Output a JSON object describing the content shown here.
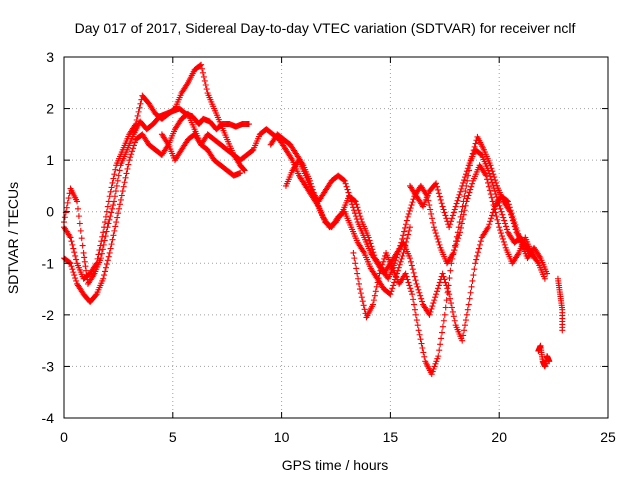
{
  "chart_data": {
    "type": "scatter",
    "title": "Day 017 of 2017, Sidereal Day-to-day VTEC variation (SDTVAR) for receiver nclf",
    "xlabel": "GPS time / hours",
    "ylabel": "SDTVAR / TECUs",
    "xlim": [
      0,
      25
    ],
    "ylim": [
      -4,
      3
    ],
    "xticks": [
      "0",
      "5",
      "10",
      "15",
      "20",
      "25"
    ],
    "yticks": [
      "3",
      "2",
      "1",
      "0",
      "-1",
      "-2",
      "-3",
      "-4"
    ],
    "grid": true,
    "marker": "plus",
    "color": "#ff0000",
    "series": [
      {
        "x": [
          0,
          0.3,
          0.6,
          0.9,
          1.1,
          1.4,
          1.7,
          2.0,
          2.3,
          2.6,
          2.9,
          3.2,
          3.5,
          3.8,
          4.1,
          4.4,
          4.7,
          5.0,
          5.3,
          5.6,
          5.9,
          6.2,
          6.4,
          6.7,
          7.0,
          7.3,
          7.6,
          7.9,
          8.2,
          8.5
        ],
        "y": [
          -0.2,
          0.45,
          0.2,
          -0.8,
          -1.4,
          -1.2,
          -0.9,
          -0.3,
          0.2,
          0.9,
          1.2,
          1.5,
          1.75,
          1.6,
          1.7,
          1.85,
          1.9,
          1.95,
          2.0,
          1.9,
          1.85,
          1.7,
          1.8,
          1.75,
          1.6,
          1.7,
          1.7,
          1.65,
          1.7,
          1.7
        ]
      },
      {
        "x": [
          0,
          0.3,
          0.6,
          0.9,
          1.2,
          1.5,
          1.8,
          2.1,
          2.4,
          2.7,
          3.0,
          3.3,
          3.6,
          3.9,
          4.2,
          4.5,
          4.8,
          5.1,
          5.4,
          5.7,
          6.0,
          6.3,
          6.6,
          6.9,
          7.2,
          7.5,
          7.8,
          8.1,
          8.3
        ],
        "y": [
          -0.3,
          -0.5,
          -1.0,
          -1.3,
          -1.2,
          -1.0,
          -0.4,
          0.3,
          0.9,
          1.2,
          1.5,
          1.7,
          2.25,
          2.1,
          1.9,
          1.8,
          1.9,
          2.0,
          2.3,
          2.5,
          2.75,
          2.85,
          2.3,
          2.0,
          1.7,
          1.4,
          1.1,
          0.9,
          0.8
        ]
      },
      {
        "x": [
          0,
          0.3,
          0.6,
          0.9,
          1.2,
          1.5,
          1.8,
          2.1,
          2.4,
          2.7,
          3.0,
          3.3,
          3.6,
          3.9,
          4.2,
          4.5,
          4.8,
          5.1,
          5.4,
          5.7,
          6.0,
          6.3,
          6.6,
          6.9,
          7.2,
          7.5,
          7.8,
          8.1
        ],
        "y": [
          -0.9,
          -1.0,
          -1.4,
          -1.6,
          -1.75,
          -1.6,
          -1.3,
          -0.8,
          -0.2,
          0.4,
          1.0,
          1.4,
          1.5,
          1.3,
          1.2,
          1.1,
          1.3,
          1.6,
          1.8,
          1.9,
          1.6,
          1.3,
          1.2,
          1.0,
          0.9,
          0.8,
          0.7,
          0.75
        ]
      },
      {
        "x": [
          4.5,
          4.8,
          5.1,
          5.4,
          5.7,
          6.0,
          6.3,
          6.6,
          6.9,
          7.2,
          7.5,
          7.8,
          8.1,
          8.4,
          8.7,
          9.0,
          9.3,
          9.6,
          9.9,
          10.2,
          10.5,
          10.8,
          11.1,
          11.4,
          11.7,
          12.0,
          12.3,
          12.6,
          12.9,
          13.2,
          13.5,
          13.8,
          14.1,
          14.4,
          14.7,
          15.0,
          15.3,
          15.6,
          15.9
        ],
        "y": [
          1.5,
          1.3,
          1.0,
          1.2,
          1.4,
          1.5,
          1.3,
          1.5,
          1.4,
          1.3,
          1.2,
          1.1,
          1.0,
          1.1,
          1.2,
          1.5,
          1.6,
          1.5,
          1.4,
          1.2,
          1.0,
          0.7,
          0.5,
          0.3,
          0.1,
          -0.2,
          -0.3,
          -0.1,
          0.0,
          -0.3,
          -0.6,
          -0.8,
          -1.1,
          -1.3,
          -1.5,
          -1.6,
          -1.2,
          -0.8,
          -0.3
        ]
      },
      {
        "x": [
          9.5,
          9.8,
          10.1,
          10.4,
          10.7,
          11.0,
          11.3,
          11.6,
          11.9,
          12.2,
          12.5,
          12.8,
          13.1,
          13.4,
          13.7,
          14.0,
          14.3,
          14.6,
          14.9,
          15.2,
          15.5,
          15.8,
          16.1,
          16.4,
          16.7,
          17.0,
          17.3,
          17.6,
          17.9,
          18.2,
          18.5,
          18.8,
          19.1,
          19.4,
          19.7,
          20.0,
          20.3,
          20.6,
          20.9,
          21.2,
          21.5,
          21.8,
          22.1
        ],
        "y": [
          1.3,
          1.5,
          1.4,
          1.3,
          1.1,
          0.9,
          0.6,
          0.2,
          -0.1,
          -0.3,
          -0.2,
          0.0,
          0.3,
          0.2,
          -0.2,
          -0.5,
          -0.9,
          -1.1,
          -1.3,
          -1.0,
          -0.6,
          -0.1,
          0.3,
          0.5,
          0.3,
          -0.3,
          -0.7,
          -1.0,
          -0.8,
          -0.4,
          0.2,
          0.6,
          0.9,
          0.7,
          0.2,
          -0.3,
          -0.7,
          -1.0,
          -0.8,
          -0.5,
          -0.8,
          -1.0,
          -1.3
        ]
      },
      {
        "x": [
          10.2,
          10.5,
          10.8,
          11.1,
          11.4,
          11.7,
          12.0,
          12.3,
          12.6,
          12.9,
          13.2,
          13.5,
          13.8,
          14.1,
          14.4,
          14.7,
          15.0,
          15.3,
          15.6,
          15.9,
          16.2,
          16.5,
          16.8,
          17.1,
          17.4,
          17.7,
          18.0,
          18.3,
          18.6,
          18.9,
          19.2,
          19.5,
          19.8,
          20.1,
          20.4,
          20.7,
          21.0,
          21.3,
          21.6,
          21.9,
          22.2
        ],
        "y": [
          0.5,
          0.8,
          1.0,
          0.7,
          0.4,
          0.2,
          0.4,
          0.6,
          0.7,
          0.6,
          0.2,
          -0.2,
          -0.5,
          -0.8,
          -1.0,
          -1.2,
          -1.0,
          -0.8,
          -0.6,
          -0.9,
          -1.4,
          -1.8,
          -2.0,
          -1.6,
          -1.2,
          -1.6,
          -2.2,
          -2.5,
          -1.8,
          -1.0,
          -0.5,
          -0.3,
          0.1,
          0.3,
          0.2,
          -0.2,
          -0.6,
          -0.9,
          -0.7,
          -0.9,
          -1.2
        ]
      },
      {
        "x": [
          13.3,
          13.6,
          13.9,
          14.2,
          14.5,
          14.8,
          15.1,
          15.4,
          15.7,
          16.0,
          16.3,
          16.6,
          16.9,
          17.2,
          17.5,
          17.8,
          18.1,
          18.4,
          18.7,
          19.0,
          19.3,
          19.6,
          19.9,
          20.2,
          20.5,
          20.8,
          21.1,
          21.4
        ],
        "y": [
          -0.8,
          -1.5,
          -2.05,
          -1.8,
          -1.2,
          -0.8,
          -1.1,
          -1.4,
          -1.2,
          -1.6,
          -2.3,
          -2.9,
          -3.15,
          -2.8,
          -2.0,
          -1.0,
          -0.4,
          0.3,
          1.0,
          1.45,
          1.2,
          0.9,
          0.5,
          0.2,
          0.0,
          -0.4,
          -0.6,
          -0.8
        ]
      },
      {
        "x": [
          15.9,
          16.2,
          16.5,
          16.8,
          17.1,
          17.4,
          17.7,
          18.0,
          18.3,
          18.6,
          18.9,
          19.2,
          19.5,
          19.8,
          20.1,
          20.4,
          20.7,
          21.0,
          21.3,
          21.6
        ],
        "y": [
          0.5,
          0.3,
          0.1,
          0.4,
          0.55,
          0.1,
          -0.3,
          0.1,
          0.5,
          0.9,
          1.2,
          1.1,
          0.8,
          0.4,
          0.0,
          -0.4,
          -0.6,
          -0.5,
          -0.7,
          -0.9
        ]
      },
      {
        "x": [
          21.8,
          21.9,
          22.0,
          22.1,
          22.2,
          22.3
        ],
        "y": [
          -2.7,
          -2.6,
          -2.9,
          -3.0,
          -2.8,
          -2.9
        ]
      },
      {
        "x": [
          22.7,
          22.8,
          22.9,
          22.9
        ],
        "y": [
          -1.3,
          -1.6,
          -1.9,
          -2.3
        ]
      }
    ]
  }
}
